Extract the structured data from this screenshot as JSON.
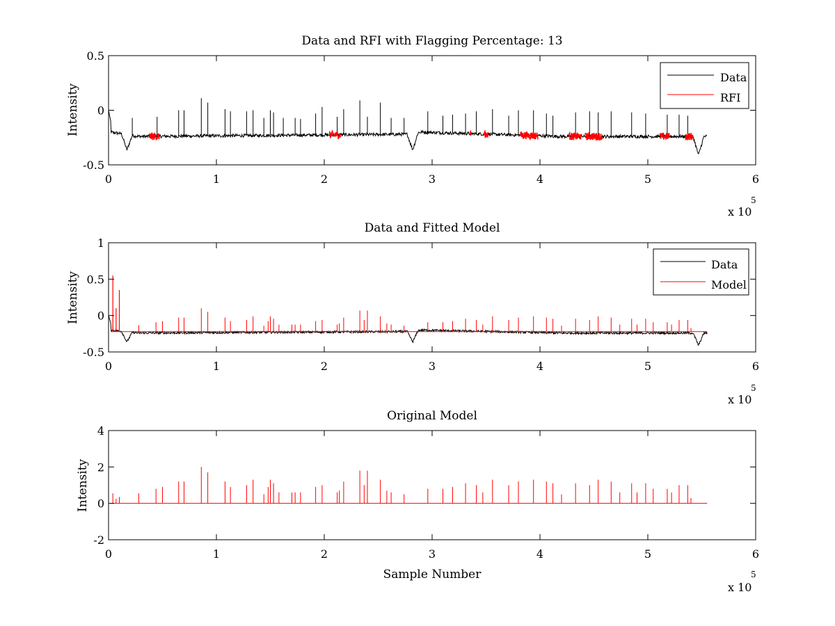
{
  "figure": {
    "background": "#ffffff"
  },
  "chart_data": [
    {
      "type": "line",
      "title": "Data and RFI with Flagging Percentage: 13",
      "xlabel": "",
      "ylabel": "Intensity",
      "xlim": [
        0,
        6
      ],
      "ylim": [
        -0.5,
        0.5
      ],
      "xticks": [
        0,
        1,
        2,
        3,
        4,
        5,
        6
      ],
      "xtick_labels": [
        "0",
        "1",
        "2",
        "3",
        "4",
        "5",
        "6"
      ],
      "yticks": [
        -0.5,
        0,
        0.5
      ],
      "ytick_labels": [
        "-0.5",
        "0",
        "0.5"
      ],
      "x_multiplier_label": "x 10",
      "x_multiplier_exponent": "5",
      "legend_position": "top-right",
      "series": [
        {
          "name": "Data",
          "color": "#000000"
        },
        {
          "name": "RFI",
          "color": "#ff0000"
        }
      ],
      "data_extent": [
        0,
        5.55
      ],
      "baseline_segments": [
        [
          0.02,
          -0.2
        ],
        [
          0.28,
          -0.24
        ],
        [
          2.78,
          -0.22
        ],
        [
          2.9,
          -0.2
        ],
        [
          4.2,
          -0.24
        ],
        [
          5.44,
          -0.24
        ]
      ],
      "dips": [
        [
          0.17,
          -0.36
        ],
        [
          2.82,
          -0.37
        ],
        [
          5.47,
          -0.39
        ]
      ],
      "spikes": [
        [
          0.22,
          -0.07
        ],
        [
          0.45,
          -0.06
        ],
        [
          0.65,
          0.0
        ],
        [
          0.7,
          0.0
        ],
        [
          0.86,
          0.11
        ],
        [
          0.92,
          0.07
        ],
        [
          1.08,
          0.01
        ],
        [
          1.13,
          -0.01
        ],
        [
          1.28,
          -0.01
        ],
        [
          1.34,
          0.0
        ],
        [
          1.44,
          -0.07
        ],
        [
          1.5,
          0.0
        ],
        [
          1.53,
          -0.02
        ],
        [
          1.62,
          -0.07
        ],
        [
          1.73,
          -0.07
        ],
        [
          1.78,
          -0.08
        ],
        [
          1.92,
          -0.03
        ],
        [
          1.98,
          0.03
        ],
        [
          2.12,
          -0.06
        ],
        [
          2.18,
          0.01
        ],
        [
          2.33,
          0.09
        ],
        [
          2.4,
          -0.06
        ],
        [
          2.52,
          0.07
        ],
        [
          2.62,
          -0.07
        ],
        [
          2.74,
          -0.07
        ],
        [
          2.96,
          -0.01
        ],
        [
          3.1,
          -0.05
        ],
        [
          3.19,
          -0.04
        ],
        [
          3.31,
          -0.03
        ],
        [
          3.41,
          -0.01
        ],
        [
          3.56,
          0.01
        ],
        [
          3.71,
          -0.05
        ],
        [
          3.8,
          0.0
        ],
        [
          3.94,
          0.0
        ],
        [
          4.06,
          -0.03
        ],
        [
          4.12,
          -0.05
        ],
        [
          4.33,
          -0.02
        ],
        [
          4.46,
          -0.01
        ],
        [
          4.54,
          -0.02
        ],
        [
          4.66,
          -0.01
        ],
        [
          4.85,
          -0.02
        ],
        [
          4.98,
          -0.03
        ],
        [
          5.18,
          -0.04
        ],
        [
          5.29,
          -0.04
        ],
        [
          5.37,
          -0.05
        ]
      ],
      "rfi_ranges": [
        [
          0.38,
          0.47
        ],
        [
          2.05,
          2.15
        ],
        [
          3.35,
          3.36
        ],
        [
          3.48,
          3.52
        ],
        [
          3.82,
          3.98
        ],
        [
          4.27,
          4.38
        ],
        [
          4.42,
          4.58
        ],
        [
          5.11,
          5.2
        ],
        [
          5.35,
          5.42
        ]
      ]
    },
    {
      "type": "line",
      "title": "Data and Fitted Model",
      "xlabel": "",
      "ylabel": "Intensity",
      "xlim": [
        0,
        6
      ],
      "ylim": [
        -0.5,
        1
      ],
      "xticks": [
        0,
        1,
        2,
        3,
        4,
        5,
        6
      ],
      "xtick_labels": [
        "0",
        "1",
        "2",
        "3",
        "4",
        "5",
        "6"
      ],
      "yticks": [
        -0.5,
        0,
        0.5,
        1
      ],
      "ytick_labels": [
        "-0.5",
        "0",
        "0.5",
        "1"
      ],
      "x_multiplier_label": "x 10",
      "x_multiplier_exponent": "5",
      "legend_position": "top-right",
      "series": [
        {
          "name": "Data",
          "color": "#000000"
        },
        {
          "name": "Model",
          "color": "#ff0000"
        }
      ],
      "early_model_spikes": [
        [
          0.04,
          0.55
        ],
        [
          0.07,
          0.1
        ],
        [
          0.1,
          0.35
        ]
      ],
      "model_baseline": -0.22
    },
    {
      "type": "line",
      "title": "Original Model",
      "xlabel": "Sample Number",
      "ylabel": "Intensity",
      "xlim": [
        0,
        6
      ],
      "ylim": [
        -2,
        4
      ],
      "xticks": [
        0,
        1,
        2,
        3,
        4,
        5,
        6
      ],
      "xtick_labels": [
        "0",
        "1",
        "2",
        "3",
        "4",
        "5",
        "6"
      ],
      "yticks": [
        -2,
        0,
        2,
        4
      ],
      "ytick_labels": [
        "-2",
        "0",
        "2",
        "4"
      ],
      "x_multiplier_label": "x 10",
      "x_multiplier_exponent": "5",
      "series": [
        {
          "color": "#ff0000"
        }
      ],
      "data_extent": [
        0.02,
        5.55
      ],
      "spikes": [
        [
          0.04,
          0.55
        ],
        [
          0.07,
          0.25
        ],
        [
          0.1,
          0.35
        ],
        [
          0.28,
          0.55
        ],
        [
          0.44,
          0.8
        ],
        [
          0.5,
          0.9
        ],
        [
          0.65,
          1.2
        ],
        [
          0.7,
          1.2
        ],
        [
          0.86,
          2.0
        ],
        [
          0.92,
          1.7
        ],
        [
          1.08,
          1.2
        ],
        [
          1.13,
          0.9
        ],
        [
          1.28,
          1.0
        ],
        [
          1.34,
          1.3
        ],
        [
          1.44,
          0.5
        ],
        [
          1.48,
          0.9
        ],
        [
          1.5,
          1.3
        ],
        [
          1.53,
          1.1
        ],
        [
          1.58,
          0.6
        ],
        [
          1.7,
          0.6
        ],
        [
          1.73,
          0.6
        ],
        [
          1.78,
          0.6
        ],
        [
          1.92,
          0.9
        ],
        [
          1.98,
          1.0
        ],
        [
          2.12,
          0.6
        ],
        [
          2.14,
          0.7
        ],
        [
          2.18,
          1.2
        ],
        [
          2.33,
          1.8
        ],
        [
          2.37,
          1.0
        ],
        [
          2.4,
          1.8
        ],
        [
          2.52,
          1.3
        ],
        [
          2.58,
          0.7
        ],
        [
          2.62,
          0.6
        ],
        [
          2.74,
          0.5
        ],
        [
          2.96,
          0.8
        ],
        [
          3.1,
          0.8
        ],
        [
          3.19,
          0.9
        ],
        [
          3.31,
          1.1
        ],
        [
          3.41,
          1.0
        ],
        [
          3.47,
          0.6
        ],
        [
          3.56,
          1.3
        ],
        [
          3.71,
          1.0
        ],
        [
          3.8,
          1.2
        ],
        [
          3.94,
          1.3
        ],
        [
          4.06,
          1.2
        ],
        [
          4.12,
          1.1
        ],
        [
          4.2,
          0.5
        ],
        [
          4.33,
          1.1
        ],
        [
          4.46,
          1.0
        ],
        [
          4.54,
          1.3
        ],
        [
          4.66,
          1.2
        ],
        [
          4.74,
          0.6
        ],
        [
          4.85,
          1.1
        ],
        [
          4.9,
          0.6
        ],
        [
          4.98,
          1.1
        ],
        [
          5.05,
          0.8
        ],
        [
          5.18,
          0.8
        ],
        [
          5.22,
          0.6
        ],
        [
          5.29,
          1.0
        ],
        [
          5.37,
          1.0
        ],
        [
          5.4,
          0.3
        ]
      ]
    }
  ]
}
